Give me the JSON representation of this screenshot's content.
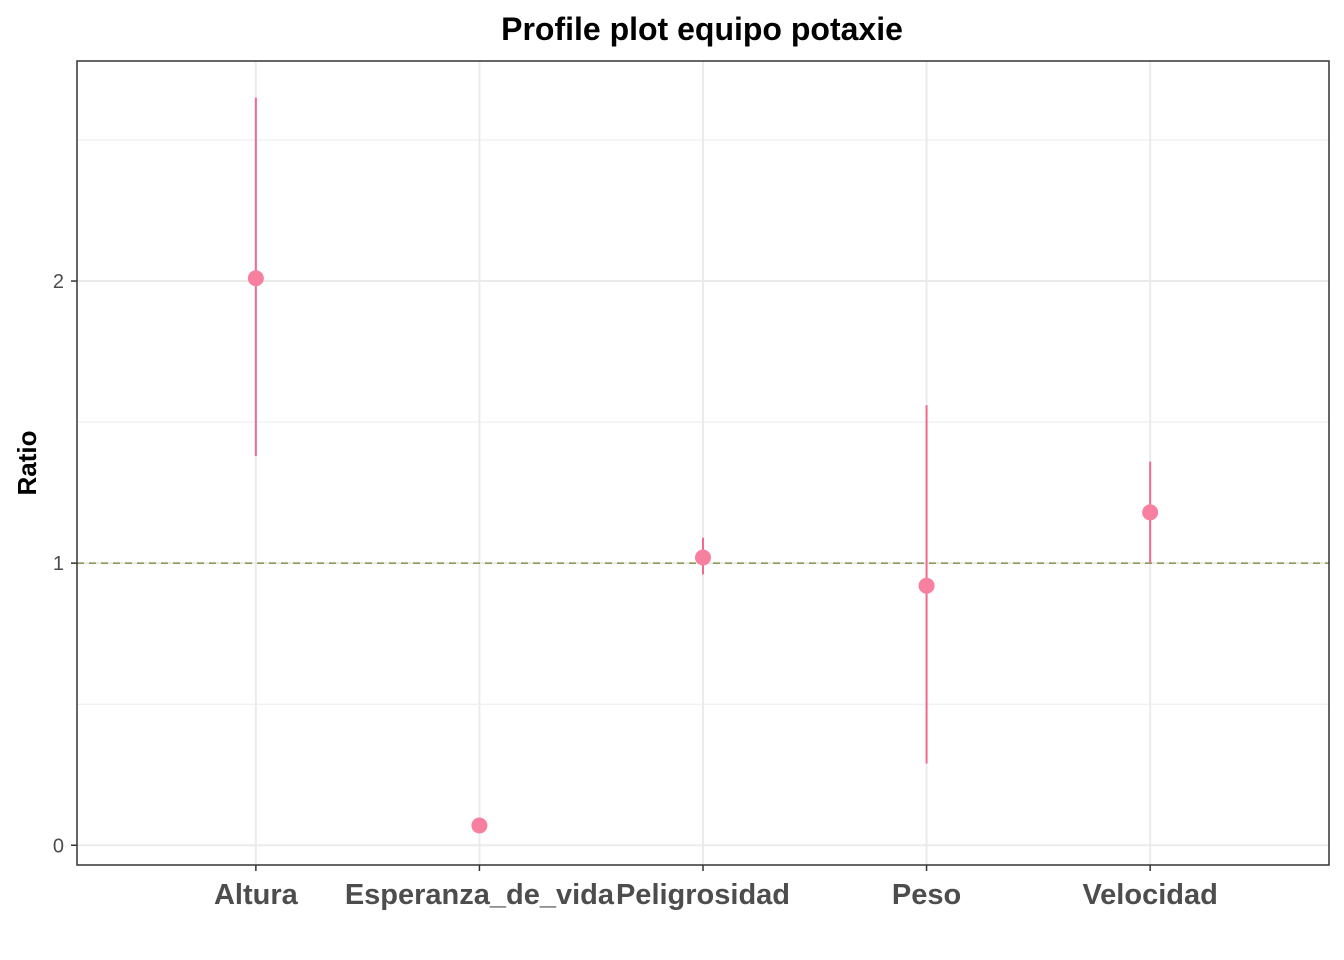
{
  "chart_data": {
    "type": "scatter",
    "title": "Profile plot equipo potaxie",
    "xlabel": "",
    "ylabel": "Ratio",
    "categories": [
      "Altura",
      "Esperanza_de_vida",
      "Peligrosidad",
      "Peso",
      "Velocidad"
    ],
    "series": [
      {
        "values": [
          2.01,
          0.07,
          1.02,
          0.92,
          1.18
        ],
        "lower": [
          1.38,
          0.07,
          0.96,
          0.29,
          1.0
        ],
        "upper": [
          2.65,
          0.07,
          1.09,
          1.56,
          1.36
        ]
      }
    ],
    "y_ticks": [
      0,
      1,
      2
    ],
    "ylim": [
      -0.07,
      2.78
    ],
    "reference_line": 1,
    "grid": true,
    "legend": "none",
    "colors": {
      "point": "#f77fa0",
      "errorbar": "#f06b8e",
      "reference": "#8f9b5c",
      "grid": "#ebebeb",
      "border": "#333333"
    }
  }
}
